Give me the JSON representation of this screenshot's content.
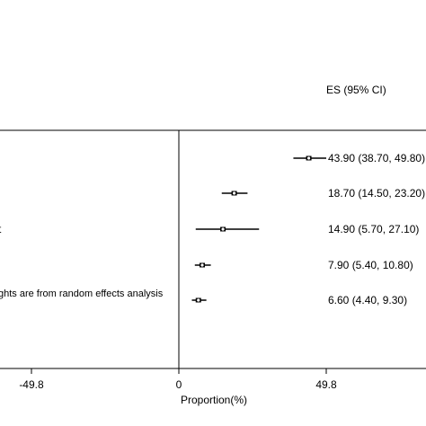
{
  "chart_data": {
    "type": "forest",
    "es_header": "ES (95% CI)",
    "x_axis_label": "Proportion(%)",
    "x_ticks": [
      {
        "value": -49.8,
        "label": "-49.8"
      },
      {
        "value": 0,
        "label": "0"
      },
      {
        "value": 49.8,
        "label": "49.8"
      }
    ],
    "xlim": [
      -85,
      100
    ],
    "studies": [
      {
        "label": "",
        "es": 43.9,
        "lower": 38.7,
        "upper": 49.8,
        "es_text": "43.90 (38.70, 49.80)"
      },
      {
        "label": "",
        "es": 18.7,
        "lower": 14.5,
        "upper": 23.2,
        "es_text": "18.70 (14.50, 23.20)"
      },
      {
        "label": "t",
        "es": 14.9,
        "lower": 5.7,
        "upper": 27.1,
        "es_text": "14.90 (5.70, 27.10)"
      },
      {
        "label": "",
        "es": 7.9,
        "lower": 5.4,
        "upper": 10.8,
        "es_text": "7.90 (5.40, 10.80)"
      },
      {
        "label": "",
        "es": 6.6,
        "lower": 4.4,
        "upper": 9.3,
        "es_text": "6.60 (4.40, 9.30)"
      }
    ],
    "note": "ghts are from random effects analysis",
    "colors": {
      "line": "#000000",
      "point": "#000000",
      "axis": "#555555"
    }
  }
}
